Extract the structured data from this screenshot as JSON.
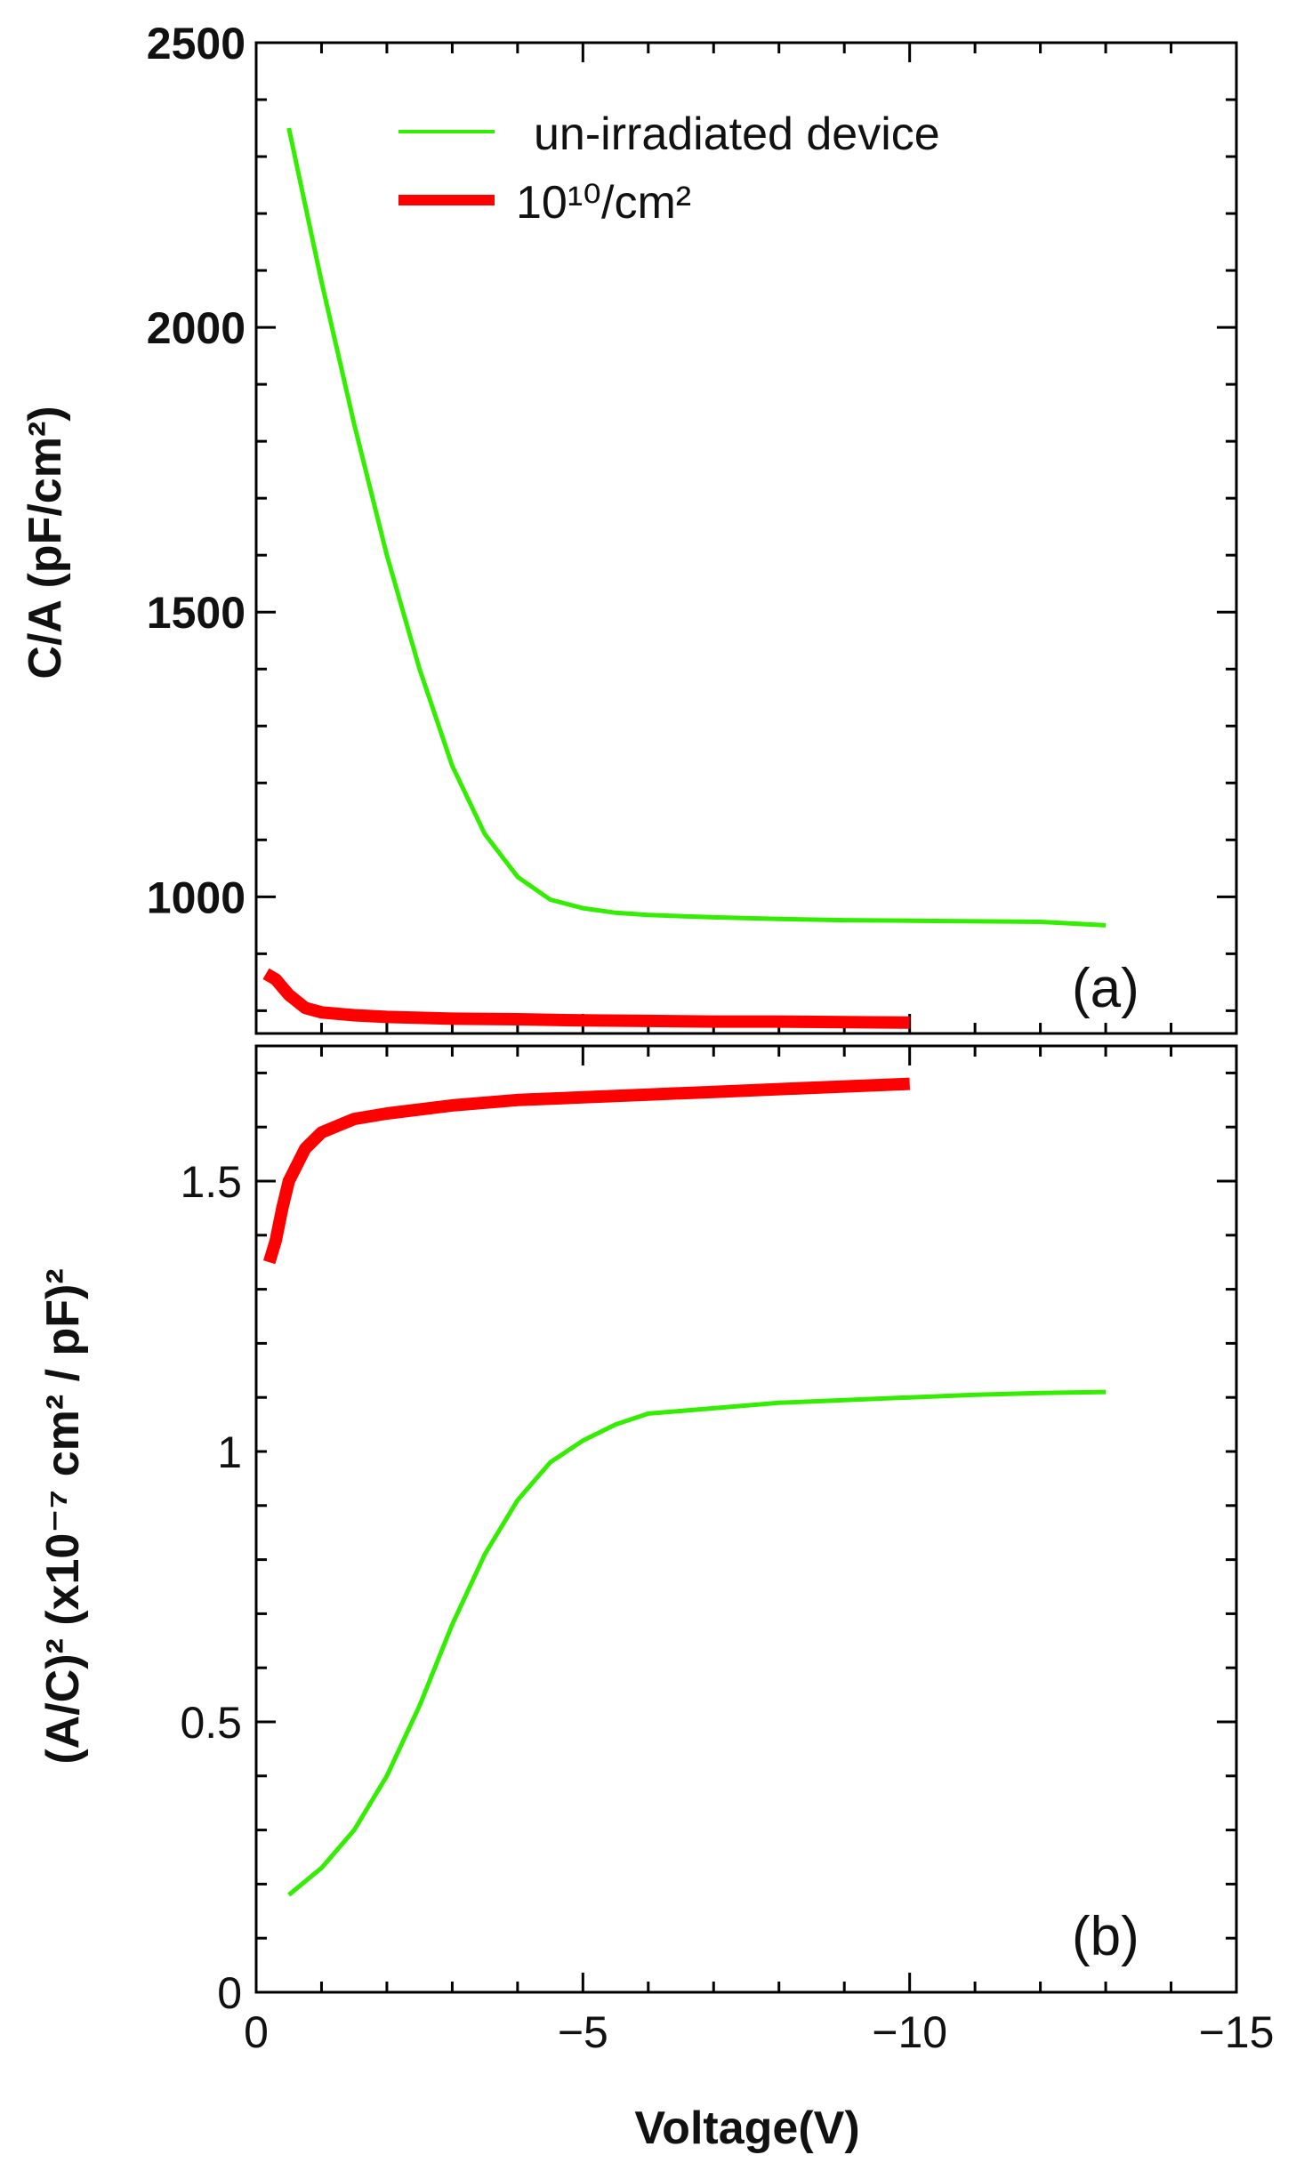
{
  "chart_data": [
    {
      "panel": "(a)",
      "type": "line",
      "ylabel": "C/A (pF/cm²)",
      "xlim": [
        0,
        -15
      ],
      "ylim": [
        760,
        2500
      ],
      "yticks": [
        1000,
        1500,
        2000,
        2500
      ],
      "colors": {
        "un-irradiated device": "#33ee00",
        "10¹⁰/cm²": "#ff0000"
      },
      "legend": {
        "placement": "top-center",
        "entries": [
          {
            "label": "un-irradiated device",
            "color": "#33ee00"
          },
          {
            "label": "10¹⁰/cm²",
            "color": "#ff0000"
          }
        ]
      },
      "series": [
        {
          "name": "un-irradiated device",
          "x": [
            -0.5,
            -0.75,
            -1.0,
            -1.5,
            -2.0,
            -2.5,
            -3.0,
            -3.5,
            -4.0,
            -4.5,
            -5.0,
            -5.5,
            -6.0,
            -7.0,
            -8.0,
            -9.0,
            -10.0,
            -11.0,
            -12.0,
            -13.0
          ],
          "y": [
            2350,
            2215,
            2080,
            1830,
            1600,
            1400,
            1230,
            1110,
            1035,
            995,
            980,
            972,
            968,
            964,
            961,
            959,
            958,
            957,
            956,
            950
          ]
        },
        {
          "name": "10¹⁰/cm²",
          "x": [
            -0.15,
            -0.3,
            -0.5,
            -0.75,
            -1.0,
            -1.5,
            -2.0,
            -3.0,
            -4.0,
            -5.0,
            -6.0,
            -7.0,
            -8.0,
            -9.0,
            -10.0
          ],
          "y": [
            865,
            855,
            828,
            805,
            797,
            792,
            789,
            786,
            785,
            783,
            782,
            781,
            781,
            780,
            779
          ]
        }
      ]
    },
    {
      "panel": "(b)",
      "type": "line",
      "xlabel": "Voltage(V)",
      "ylabel": "(A/C)² (x10⁻⁷ cm² / pF)²",
      "xlim": [
        0,
        -15
      ],
      "ylim": [
        0,
        1.75
      ],
      "xticks": [
        0,
        -5,
        -10,
        -15
      ],
      "xtick_labels": [
        "0",
        "−5",
        "−10",
        "−15"
      ],
      "yticks": [
        0,
        0.5,
        1,
        1.5
      ],
      "ytick_labels": [
        "0",
        "0.5",
        "1",
        "1.5"
      ],
      "series": [
        {
          "name": "un-irradiated device",
          "x": [
            -0.5,
            -1.0,
            -1.5,
            -2.0,
            -2.5,
            -3.0,
            -3.5,
            -4.0,
            -4.5,
            -5.0,
            -5.5,
            -6.0,
            -7.0,
            -8.0,
            -9.0,
            -10.0,
            -11.0,
            -12.0,
            -13.0
          ],
          "y": [
            0.18,
            0.23,
            0.3,
            0.4,
            0.53,
            0.68,
            0.81,
            0.91,
            0.98,
            1.02,
            1.05,
            1.07,
            1.08,
            1.09,
            1.095,
            1.1,
            1.105,
            1.108,
            1.11
          ]
        },
        {
          "name": "10¹⁰/cm²",
          "x": [
            -0.2,
            -0.3,
            -0.4,
            -0.5,
            -0.75,
            -1.0,
            -1.5,
            -2.0,
            -3.0,
            -4.0,
            -5.0,
            -6.0,
            -7.0,
            -8.0,
            -9.0,
            -10.0
          ],
          "y": [
            1.35,
            1.39,
            1.45,
            1.5,
            1.56,
            1.59,
            1.615,
            1.625,
            1.64,
            1.65,
            1.655,
            1.66,
            1.665,
            1.67,
            1.675,
            1.68
          ]
        }
      ]
    }
  ]
}
